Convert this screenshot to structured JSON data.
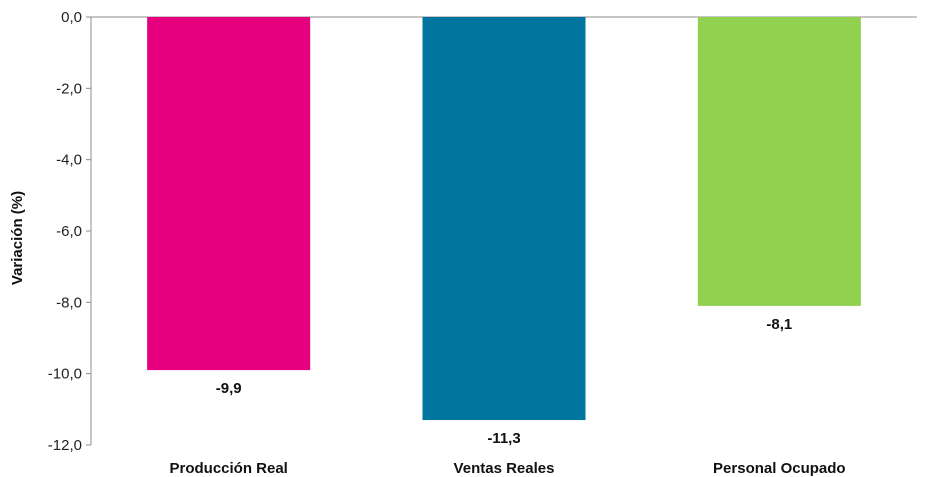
{
  "chart_data": {
    "type": "bar",
    "categories": [
      "Producción Real",
      "Ventas Reales",
      "Personal Ocupado"
    ],
    "values": [
      -9.9,
      -11.3,
      -8.1
    ],
    "value_labels": [
      "-9,9",
      "-11,3",
      "-8,1"
    ],
    "colors": [
      "#e6007e",
      "#00759e",
      "#92d050"
    ],
    "title": "",
    "xlabel": "",
    "ylabel": "Variación (%)",
    "ylim": [
      -12,
      0
    ],
    "yticks": [
      0,
      -2,
      -4,
      -6,
      -8,
      -10,
      -12
    ],
    "ytick_labels": [
      "0,0",
      "-2,0",
      "-4,0",
      "-6,0",
      "-8,0",
      "-10,0",
      "-12,0"
    ],
    "grid": false,
    "legend": "none"
  }
}
